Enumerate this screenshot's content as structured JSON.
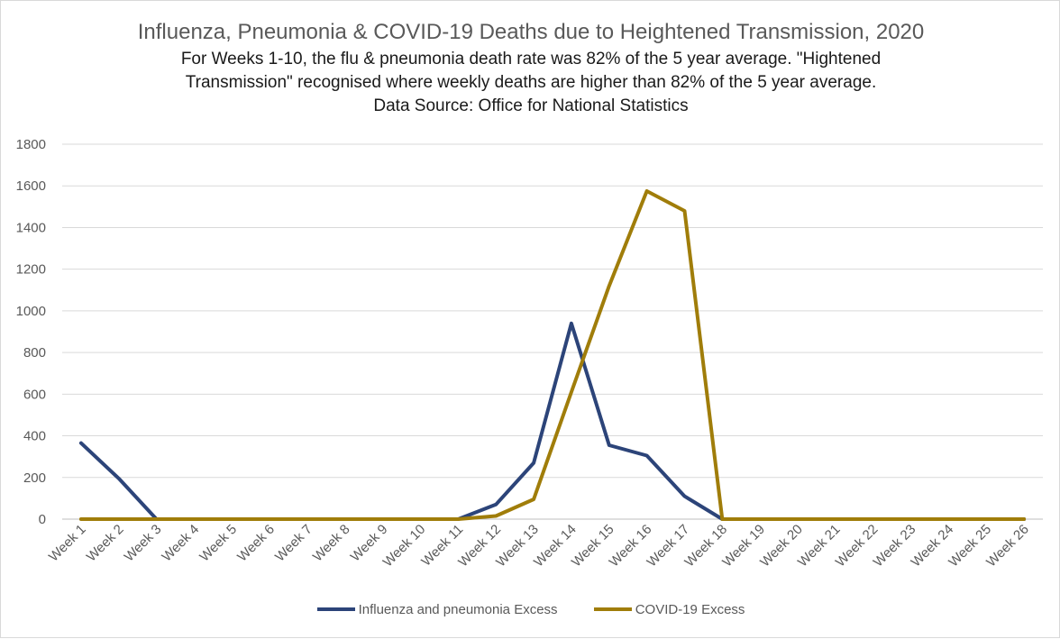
{
  "chart_data": {
    "type": "line",
    "title": "Influenza, Pneumonia & COVID-19 Deaths due to Heightened Transmission, 2020",
    "subtitle_lines": [
      "For Weeks 1-10, the flu & pneumonia death rate was 82% of the 5 year average. \"Hightened",
      "Transmission\" recognised where weekly deaths are higher than 82% of the 5 year average.",
      "Data Source: Office for National Statistics"
    ],
    "xlabel": "",
    "ylabel": "",
    "categories": [
      "Week 1",
      "Week 2",
      "Week 3",
      "Week 4",
      "Week 5",
      "Week 6",
      "Week 7",
      "Week 8",
      "Week 9",
      "Week 10",
      "Week 11",
      "Week 12",
      "Week 13",
      "Week 14",
      "Week 15",
      "Week 16",
      "Week 17",
      "Week 18",
      "Week 19",
      "Week 20",
      "Week 21",
      "Week 22",
      "Week 23",
      "Week 24",
      "Week 25",
      "Week 26"
    ],
    "ylim": [
      0,
      1800
    ],
    "yticks": [
      0,
      200,
      400,
      600,
      800,
      1000,
      1200,
      1400,
      1600,
      1800
    ],
    "grid": true,
    "legend_position": "bottom",
    "series": [
      {
        "name": "Influenza and pneumonia Excess",
        "color": "#2c4479",
        "values": [
          365,
          195,
          0,
          0,
          0,
          0,
          0,
          0,
          0,
          0,
          0,
          70,
          270,
          940,
          355,
          305,
          110,
          0,
          0,
          0,
          0,
          0,
          0,
          0,
          0,
          0
        ]
      },
      {
        "name": "COVID-19 Excess",
        "color": "#a07d0a",
        "values": [
          0,
          0,
          0,
          0,
          0,
          0,
          0,
          0,
          0,
          0,
          0,
          15,
          95,
          610,
          1120,
          1575,
          1480,
          0,
          0,
          0,
          0,
          0,
          0,
          0,
          0,
          0
        ]
      }
    ]
  }
}
